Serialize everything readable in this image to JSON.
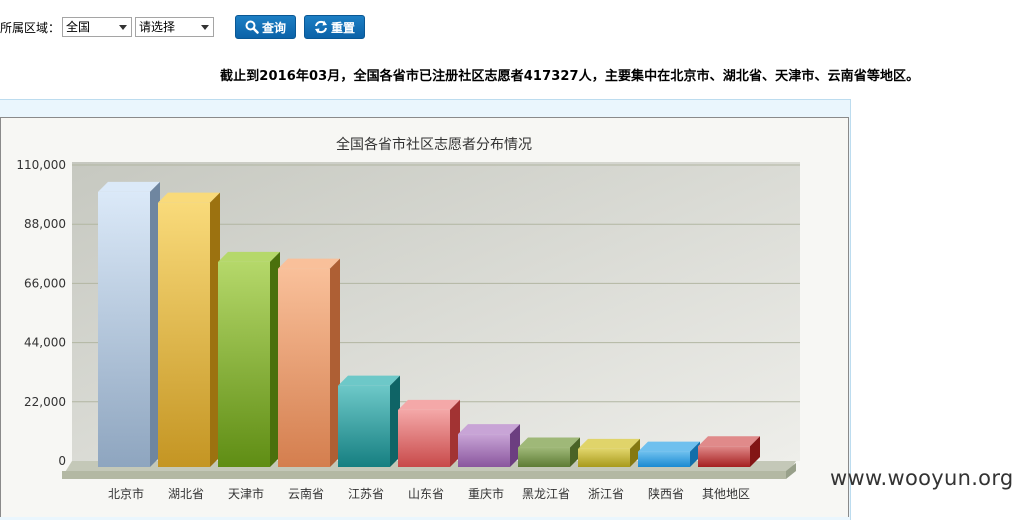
{
  "filters": {
    "region_label": "所属区域：",
    "region_value": "全国",
    "sub_value": "请选择",
    "query_label": "查询",
    "reset_label": "重置"
  },
  "summary_text": "截止到2016年03月，全国各省市已注册社区志愿者417327人，主要集中在北京市、湖北省、天津市、云南省等地区。",
  "watermark": "www.wooyun.org",
  "chart_data": {
    "type": "bar",
    "title": "全国各省市社区志愿者分布情况",
    "xlabel": "",
    "ylabel": "",
    "categories": [
      "北京市",
      "湖北省",
      "天津市",
      "云南省",
      "江苏省",
      "山东省",
      "重庆市",
      "黑龙江省",
      "浙江省",
      "陕西省",
      "其他地区"
    ],
    "values": [
      100000,
      96000,
      74000,
      71500,
      28000,
      19000,
      10000,
      5000,
      4500,
      3500,
      5500
    ],
    "ylim": [
      0,
      110000
    ],
    "yticks": [
      "0",
      "22,000",
      "44,000",
      "66,000",
      "88,000",
      "110,000"
    ],
    "grid": true,
    "legend": "none",
    "colors": [
      [
        "#dbe9f8",
        "#8ea5bf",
        "#6f86a0"
      ],
      [
        "#f9da7a",
        "#c49523",
        "#9c7210"
      ],
      [
        "#b5d86a",
        "#5f8d14",
        "#4a700c"
      ],
      [
        "#f9c09a",
        "#d47e4e",
        "#ae5f34"
      ],
      [
        "#6dc8c8",
        "#167f81",
        "#0f6466"
      ],
      [
        "#f4a8a8",
        "#c84a4a",
        "#a23333"
      ],
      [
        "#c8a4d6",
        "#8a569e",
        "#6c3e80"
      ],
      [
        "#9fb878",
        "#5e7c35",
        "#4a6326"
      ],
      [
        "#e0d46a",
        "#a89a1c",
        "#857912"
      ],
      [
        "#6fc0ee",
        "#1a8ad2",
        "#126ea9"
      ],
      [
        "#e08a8a",
        "#a51f1f",
        "#831515"
      ]
    ]
  }
}
